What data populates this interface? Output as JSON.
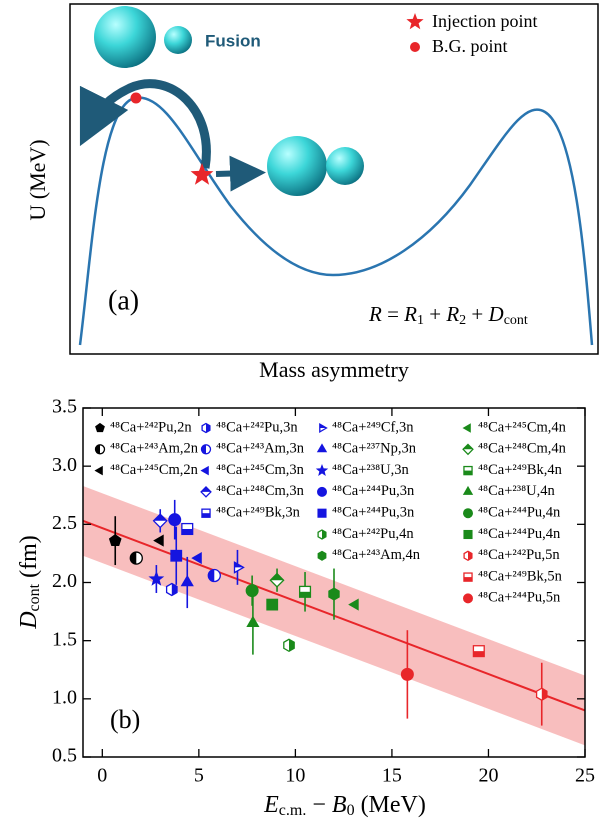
{
  "schematic": {
    "fusion_label": "Fusion",
    "legend": [
      "Injection point",
      "B.G. point"
    ],
    "panel_label": "(a)",
    "formula": [
      "R",
      " = ",
      "R",
      "1",
      " + ",
      "R",
      "2",
      " + ",
      "D",
      "cont"
    ],
    "y_label": "U (MeV)",
    "x_label": "Mass asymmetry"
  },
  "chart_data": {
    "type": "scatter",
    "panel_label": "(b)",
    "x_label": [
      "E",
      "c.m.",
      " − ",
      "B",
      "0",
      " (MeV)"
    ],
    "y_label": [
      "D",
      "cont",
      " (fm)"
    ],
    "xlim": [
      -1,
      25
    ],
    "xticks": [
      0,
      5,
      10,
      15,
      20,
      25
    ],
    "ylim": [
      0.5,
      3.5
    ],
    "yticks": [
      0.5,
      {
        "value": 1,
        "label": "1.0"
      },
      1.5,
      {
        "value": 2,
        "label": "2.0"
      },
      2.5,
      {
        "value": 3,
        "label": "3.0"
      },
      3.5
    ],
    "fit": {
      "color": "#e8262a",
      "x": [
        -1,
        25
      ],
      "values": [
        2.53,
        0.9
      ]
    },
    "band": {
      "color": "#f7b3b3",
      "x": [
        -1,
        25
      ],
      "upper": [
        2.83,
        1.2
      ],
      "lower": [
        2.23,
        0.6
      ]
    },
    "series": [
      {
        "name": "⁴⁸Ca+²⁴²Pu,2n",
        "color": "#000000",
        "marker": "pentagon",
        "x": [
          0.67
        ],
        "values": [
          2.36
        ],
        "errors": [
          0.21
        ]
      },
      {
        "name": "⁴⁸Ca+²⁴³Am,2n",
        "color": "#000000",
        "marker": "halfcircle",
        "x": [
          1.76
        ],
        "values": [
          2.21
        ]
      },
      {
        "name": "⁴⁸Ca+²⁴⁵Cm,2n",
        "color": "#000000",
        "marker": "ltri",
        "x": [
          3.0
        ],
        "values": [
          2.36
        ]
      },
      {
        "name": "⁴⁸Ca+²⁴²Pu,3n",
        "color": "#1515e0",
        "marker": "halfhex",
        "x": [
          3.6
        ],
        "values": [
          1.94
        ]
      },
      {
        "name": "⁴⁸Ca+²⁴³Am,3n",
        "color": "#1515e0",
        "marker": "halfcircle",
        "x": [
          5.8
        ],
        "values": [
          2.06
        ]
      },
      {
        "name": "⁴⁸Ca+²⁴⁵Cm,3n",
        "color": "#1515e0",
        "marker": "ltri",
        "x": [
          4.97
        ],
        "values": [
          2.21
        ]
      },
      {
        "name": "⁴⁸Ca+²⁴⁸Cm,3n",
        "color": "#1515e0",
        "marker": "diamond",
        "x": [
          3.0
        ],
        "values": [
          2.53
        ],
        "errors": [
          0.1
        ]
      },
      {
        "name": "⁴⁸Ca+²⁴⁹Bk,3n",
        "color": "#1515e0",
        "marker": "halfsquare",
        "x": [
          4.4
        ],
        "values": [
          2.46
        ]
      },
      {
        "name": "⁴⁸Ca+²⁴⁹Cf,3n",
        "color": "#1515e0",
        "marker": "rtri",
        "x": [
          7.0
        ],
        "values": [
          2.13
        ],
        "errors": [
          0.15
        ]
      },
      {
        "name": "⁴⁸Ca+²³⁷Np,3n",
        "color": "#1515e0",
        "marker": "utri",
        "x": [
          4.4
        ],
        "values": [
          2.0
        ],
        "errors": [
          0.22
        ]
      },
      {
        "name": "⁴⁸Ca+²³⁸U,3n",
        "color": "#1515e0",
        "marker": "star",
        "x": [
          2.8
        ],
        "values": [
          2.03
        ],
        "errors": [
          0.12
        ]
      },
      {
        "name": "⁴⁸Ca+²⁴⁴Pu,3n",
        "color": "#1515e0",
        "marker": "circle",
        "x": [
          3.75
        ],
        "values": [
          2.54
        ],
        "errors": [
          0.17
        ]
      },
      {
        "name": "⁴⁸Ca+²⁴⁴Pu,3n",
        "color": "#1515e0",
        "marker": "square",
        "x": [
          3.83
        ],
        "values": [
          2.23
        ],
        "errors": [
          0.25
        ]
      },
      {
        "name": "⁴⁸Ca+²⁴²Pu,4n",
        "color": "#1a8a1a",
        "marker": "halfhex",
        "x": [
          9.67
        ],
        "values": [
          1.46
        ]
      },
      {
        "name": "⁴⁸Ca+²⁴³Am,4n",
        "color": "#1a8a1a",
        "marker": "hexagon",
        "x": [
          12.0
        ],
        "values": [
          1.9
        ],
        "errors": [
          0.22
        ]
      },
      {
        "name": "⁴⁸Ca+²⁴⁵Cm,4n",
        "color": "#1a8a1a",
        "marker": "ltri",
        "x": [
          13.1
        ],
        "values": [
          1.81
        ]
      },
      {
        "name": "⁴⁸Ca+²⁴⁸Cm,4n",
        "color": "#1a8a1a",
        "marker": "diamond",
        "x": [
          9.05
        ],
        "values": [
          2.02
        ],
        "errors": [
          0.1
        ]
      },
      {
        "name": "⁴⁸Ca+²⁴⁹Bk,4n",
        "color": "#1a8a1a",
        "marker": "halfsquare",
        "x": [
          10.5
        ],
        "values": [
          1.92
        ],
        "errors": [
          0.17
        ]
      },
      {
        "name": "⁴⁸Ca+²³⁸U,4n",
        "color": "#1a8a1a",
        "marker": "utri",
        "x": [
          7.8
        ],
        "values": [
          1.65
        ],
        "errors": [
          0.27
        ]
      },
      {
        "name": "⁴⁸Ca+²⁴⁴Pu,4n",
        "color": "#1a8a1a",
        "marker": "circle",
        "x": [
          7.76
        ],
        "values": [
          1.93
        ],
        "errors": [
          0.13
        ]
      },
      {
        "name": "⁴⁸Ca+²⁴⁴Pu,4n",
        "color": "#1a8a1a",
        "marker": "square",
        "x": [
          8.8
        ],
        "values": [
          1.81
        ]
      },
      {
        "name": "⁴⁸Ca+²⁴²Pu,5n",
        "color": "#e8262a",
        "marker": "halfhex",
        "x": [
          22.76
        ],
        "values": [
          1.04
        ],
        "errors": [
          0.27
        ]
      },
      {
        "name": "⁴⁸Ca+²⁴⁹Bk,5n",
        "color": "#e8262a",
        "marker": "halfsquare",
        "x": [
          19.5
        ],
        "values": [
          1.41
        ]
      },
      {
        "name": "⁴⁸Ca+²⁴⁴Pu,5n",
        "color": "#e8262a",
        "marker": "circle",
        "x": [
          15.8
        ],
        "values": [
          1.21
        ],
        "errors": [
          0.38
        ]
      }
    ]
  }
}
